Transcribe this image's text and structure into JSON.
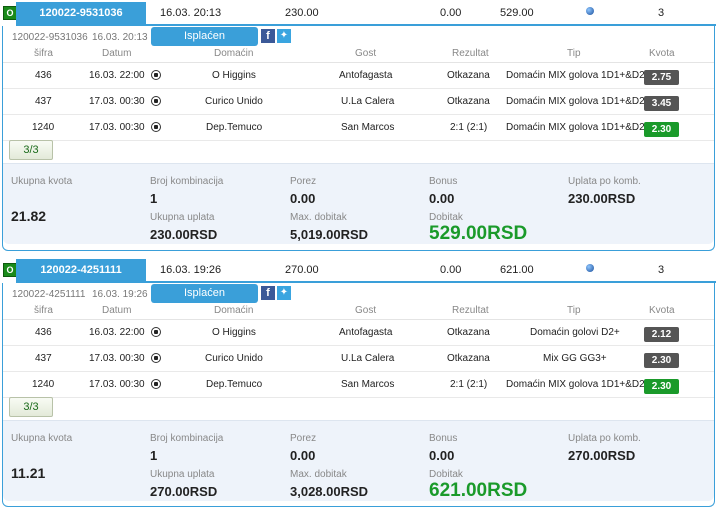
{
  "columns": {
    "sifra": "šifra",
    "datum": "Datum",
    "domacin": "Domaćin",
    "gost": "Gost",
    "rezultat": "Rezultat",
    "tip": "Tip",
    "kvota": "Kvota"
  },
  "summary_labels": {
    "ukupna_kvota": "Ukupna kvota",
    "broj_kombinacija": "Broj kombinacija",
    "porez": "Porez",
    "bonus": "Bonus",
    "uplata_po_komb": "Uplata po komb.",
    "ukupna_uplata": "Ukupna uplata",
    "max_dobitak": "Max. dobitak",
    "dobitak": "Dobitak"
  },
  "paid_label": "Isplaćen",
  "facebook_icon_glyph": "f",
  "colors": {
    "accent": "#3a9fd9",
    "win": "#1a9a2a",
    "odds_default": "#555555"
  },
  "tickets": [
    {
      "badge": "O",
      "id": "120022-9531036",
      "datetime": "16.03. 20:13",
      "stake": "230.00",
      "tax": "0.00",
      "payout": "529.00",
      "status_icon": "blue-ball-icon",
      "events_count": "3",
      "sub_id": "120022-9531036",
      "sub_datetime": "16.03. 20:13",
      "matches": [
        {
          "sifra": "436",
          "datum": "16.03. 22:00",
          "domacin": "O Higgins",
          "gost": "Antofagasta",
          "rezultat": "Otkazana",
          "tip": "Domaćin MIX golova 1D1+&D2+",
          "kvota": "2.75",
          "win": false
        },
        {
          "sifra": "437",
          "datum": "17.03. 00:30",
          "domacin": "Curico Unido",
          "gost": "U.La Calera",
          "rezultat": "Otkazana",
          "tip": "Domaćin MIX golova 1D1+&D2+",
          "kvota": "3.45",
          "win": false
        },
        {
          "sifra": "1240",
          "datum": "17.03. 00:30",
          "domacin": "Dep.Temuco",
          "gost": "San Marcos",
          "rezultat": "2:1 (2:1)",
          "tip": "Domaćin MIX golova 1D1+&D2+",
          "kvota": "2.30",
          "win": true
        }
      ],
      "count": "3/3",
      "summary": {
        "ukupna_kvota": "21.82",
        "broj_kombinacija": "1",
        "porez": "0.00",
        "bonus": "0.00",
        "uplata_po_komb": "230.00RSD",
        "ukupna_uplata": "230.00RSD",
        "max_dobitak": "5,019.00RSD",
        "dobitak": "529.00RSD"
      }
    },
    {
      "badge": "O",
      "id": "120022-4251111",
      "datetime": "16.03. 19:26",
      "stake": "270.00",
      "tax": "0.00",
      "payout": "621.00",
      "status_icon": "blue-ball-icon",
      "events_count": "3",
      "sub_id": "120022-4251111",
      "sub_datetime": "16.03. 19:26",
      "matches": [
        {
          "sifra": "436",
          "datum": "16.03. 22:00",
          "domacin": "O Higgins",
          "gost": "Antofagasta",
          "rezultat": "Otkazana",
          "tip": "Domaćin golovi D2+",
          "kvota": "2.12",
          "win": false
        },
        {
          "sifra": "437",
          "datum": "17.03. 00:30",
          "domacin": "Curico Unido",
          "gost": "U.La Calera",
          "rezultat": "Otkazana",
          "tip": "Mix GG GG3+",
          "kvota": "2.30",
          "win": false
        },
        {
          "sifra": "1240",
          "datum": "17.03. 00:30",
          "domacin": "Dep.Temuco",
          "gost": "San Marcos",
          "rezultat": "2:1 (2:1)",
          "tip": "Domaćin MIX golova 1D1+&D2+",
          "kvota": "2.30",
          "win": true
        }
      ],
      "count": "3/3",
      "summary": {
        "ukupna_kvota": "11.21",
        "broj_kombinacija": "1",
        "porez": "0.00",
        "bonus": "0.00",
        "uplata_po_komb": "270.00RSD",
        "ukupna_uplata": "270.00RSD",
        "max_dobitak": "3,028.00RSD",
        "dobitak": "621.00RSD"
      }
    }
  ]
}
